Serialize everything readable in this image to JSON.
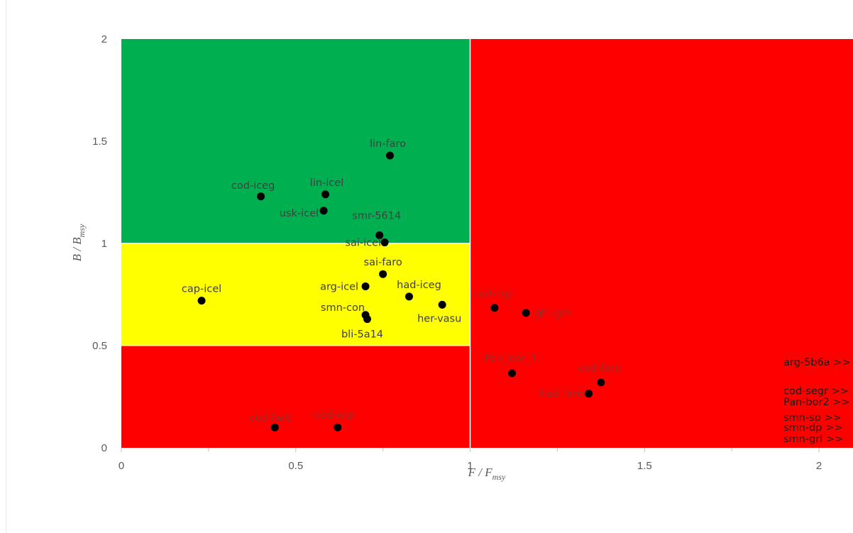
{
  "chart_data": {
    "type": "scatter",
    "xlabel": {
      "main": "F / F",
      "sub": "msy"
    },
    "ylabel": {
      "main": "B / B",
      "sub": "msy"
    },
    "xlim": [
      0,
      2.1
    ],
    "ylim": [
      0,
      2
    ],
    "x_ticks": [
      0,
      0.5,
      1,
      1.5,
      2
    ],
    "x_tick_labels": [
      "0",
      "0.5",
      "1",
      "1.5",
      "2"
    ],
    "y_ticks": [
      0,
      0.5,
      1,
      1.5,
      2
    ],
    "y_tick_labels": [
      "0",
      "0.5",
      "1",
      "1.5",
      "2"
    ],
    "grid": false,
    "zones": [
      {
        "name": "green",
        "color": "#00b050",
        "x": [
          0,
          1
        ],
        "y": [
          1,
          2
        ]
      },
      {
        "name": "yellow",
        "color": "#ffff00",
        "x": [
          0,
          1
        ],
        "y": [
          0.5,
          1
        ]
      },
      {
        "name": "red-low",
        "color": "#ff0000",
        "x": [
          0,
          1
        ],
        "y": [
          0,
          0.5
        ]
      },
      {
        "name": "red-right",
        "color": "#ff0000",
        "x": [
          1,
          2.1
        ],
        "y": [
          0,
          2
        ]
      }
    ],
    "points": [
      {
        "label": "lin-faro",
        "x": 0.77,
        "y": 1.43
      },
      {
        "label": "cod-iceg",
        "x": 0.4,
        "y": 1.23
      },
      {
        "label": "lin-icel",
        "x": 0.585,
        "y": 1.24
      },
      {
        "label": "usk-icel",
        "x": 0.58,
        "y": 1.16
      },
      {
        "label": "smr-5614",
        "x": 0.74,
        "y": 1.04
      },
      {
        "label": "sai-icel",
        "x": 0.755,
        "y": 1.005
      },
      {
        "label": "sai-faro",
        "x": 0.75,
        "y": 0.85
      },
      {
        "label": "arg-icel",
        "x": 0.7,
        "y": 0.79
      },
      {
        "label": "had-iceg",
        "x": 0.825,
        "y": 0.74
      },
      {
        "label": "cap-icel",
        "x": 0.23,
        "y": 0.72
      },
      {
        "label": "her-vasu",
        "x": 0.92,
        "y": 0.7
      },
      {
        "label": "smn-con",
        "x": 0.7,
        "y": 0.65
      },
      {
        "label": "bli-5a14",
        "x": 0.705,
        "y": 0.63
      },
      {
        "label": "cod-ingr",
        "x": 1.07,
        "y": 0.685
      },
      {
        "label": "ghl-grn",
        "x": 1.16,
        "y": 0.66
      },
      {
        "label": "Pan_bor_1",
        "x": 1.12,
        "y": 0.365
      },
      {
        "label": "cod-farp",
        "x": 1.375,
        "y": 0.32
      },
      {
        "label": "had-faro",
        "x": 1.34,
        "y": 0.265
      },
      {
        "label": "cod-farb",
        "x": 0.44,
        "y": 0.1
      },
      {
        "label": "cod-wgr",
        "x": 0.62,
        "y": 0.1
      }
    ],
    "offscale_labels": [
      {
        "label": "arg-5b6a >>",
        "y": 0.42
      },
      {
        "label": "cod-segr >>",
        "y": 0.28
      },
      {
        "label": "Pan-bor2 >>",
        "y": 0.225
      },
      {
        "label": "smn-sp >>",
        "y": 0.15
      },
      {
        "label": "smn-dp >>",
        "y": 0.1
      },
      {
        "label": "smn-grl >>",
        "y": 0.045
      }
    ]
  }
}
